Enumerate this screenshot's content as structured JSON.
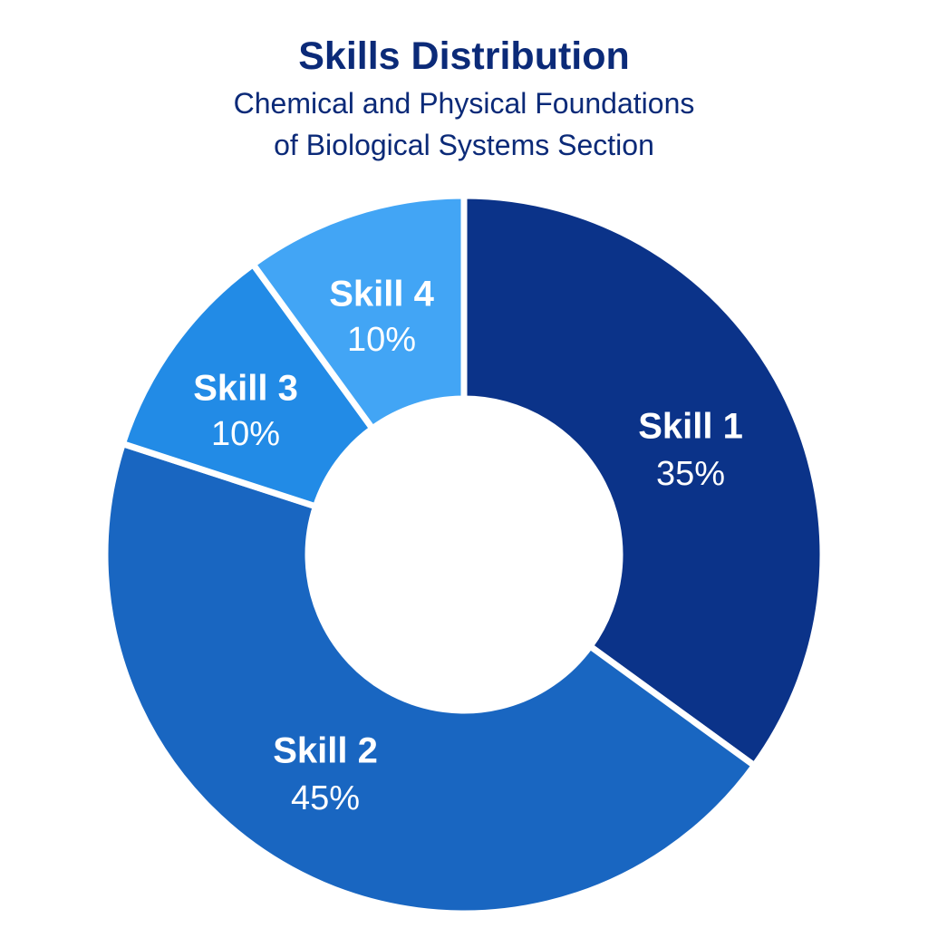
{
  "chart_data": {
    "type": "pie",
    "title": "Skills Distribution",
    "subtitle_lines": [
      "Chemical and Physical Foundations",
      "of Biological Systems Section"
    ],
    "categories": [
      "Skill 1",
      "Skill 2",
      "Skill 3",
      "Skill 4"
    ],
    "values": [
      35,
      45,
      10,
      10
    ],
    "value_labels": [
      "35%",
      "45%",
      "10%",
      "10%"
    ],
    "donut": true,
    "start": "12 o'clock",
    "direction": "clockwise",
    "legend": "none",
    "colors": [
      "#0b3389",
      "#1966c1",
      "#228be6",
      "#42a5f5"
    ],
    "label_color": "#ffffff",
    "title_color": "#0b2a78",
    "slice_border_color": "#ffffff"
  }
}
